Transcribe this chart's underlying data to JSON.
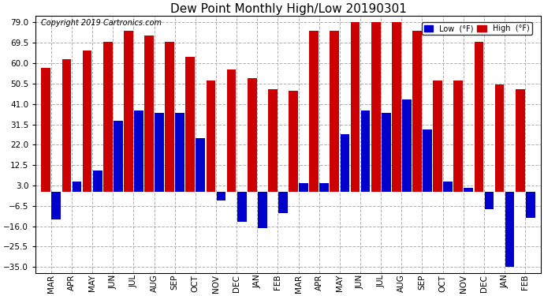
{
  "title": "Dew Point Monthly High/Low 20190301",
  "copyright": "Copyright 2019 Cartronics.com",
  "months": [
    "MAR",
    "APR",
    "MAY",
    "JUN",
    "JUL",
    "AUG",
    "SEP",
    "OCT",
    "NOV",
    "DEC",
    "JAN",
    "FEB",
    "MAR",
    "APR",
    "MAY",
    "JUN",
    "JUL",
    "AUG",
    "SEP",
    "OCT",
    "NOV",
    "DEC",
    "JAN",
    "FEB"
  ],
  "highs": [
    58,
    62,
    66,
    70,
    75,
    73,
    70,
    63,
    52,
    57,
    53,
    48,
    47,
    75,
    75,
    79,
    79,
    79,
    75,
    52,
    52,
    70,
    50,
    48
  ],
  "lows": [
    -13,
    5,
    10,
    33,
    38,
    37,
    37,
    25,
    -4,
    -14,
    -17,
    -10,
    4,
    4,
    27,
    38,
    37,
    43,
    29,
    5,
    2,
    -8,
    -35,
    -12
  ],
  "ylim": [
    -38,
    82
  ],
  "yticks": [
    -35.0,
    -25.5,
    -16.0,
    -6.5,
    3.0,
    12.5,
    22.0,
    31.5,
    41.0,
    50.5,
    60.0,
    69.5,
    79.0
  ],
  "high_color": "#cc0000",
  "low_color": "#0000cc",
  "bg_color": "#ffffff",
  "grid_color": "#b0b0b0",
  "title_fontsize": 11,
  "copyright_fontsize": 7,
  "tick_fontsize": 7.5
}
